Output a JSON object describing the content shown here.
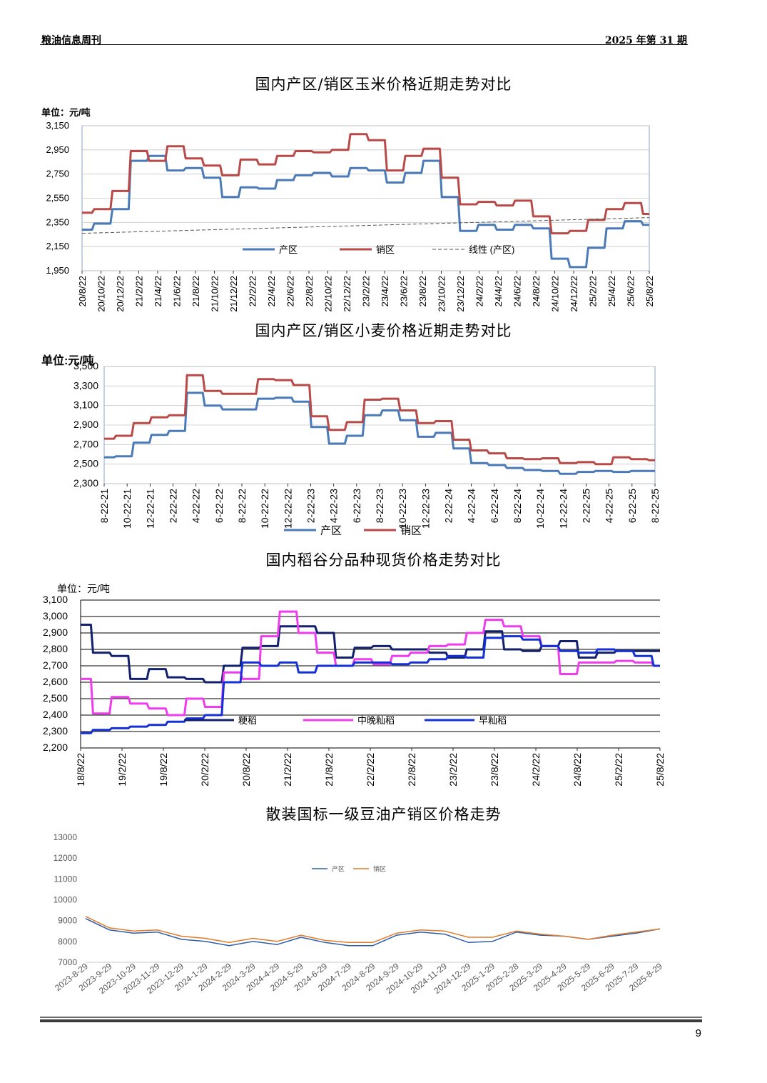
{
  "header": {
    "left": "粮油信息周刊",
    "right": "2025 年第 31 期"
  },
  "page_number": "9",
  "charts": [
    {
      "id": "corn",
      "title": "国内产区/销区玉米价格近期走势对比",
      "unit": "单位：元/吨",
      "ylim": [
        1950,
        3150
      ],
      "yticks": [
        "1,950",
        "2,150",
        "2,350",
        "2,550",
        "2,750",
        "2,950",
        "3,150"
      ],
      "yvals": [
        1950,
        2150,
        2350,
        2550,
        2750,
        2950,
        3150
      ],
      "xticks": [
        "20/8/22",
        "20/10/22",
        "20/12/22",
        "21/2/22",
        "21/4/22",
        "21/6/22",
        "21/8/22",
        "21/10/22",
        "21/12/22",
        "22/2/22",
        "22/4/22",
        "22/6/22",
        "22/8/22",
        "22/10/22",
        "22/12/22",
        "23/2/22",
        "23/4/22",
        "23/6/22",
        "23/8/22",
        "23/10/22",
        "23/12/22",
        "24/2/22",
        "24/4/22",
        "24/6/22",
        "24/8/22",
        "24/10/22",
        "24/12/22",
        "25/2/22",
        "25/4/22",
        "25/6/22",
        "25/8/22"
      ],
      "legend": [
        "产区",
        "销区",
        "线性 (产区)"
      ],
      "colors": [
        "#4a7ab8",
        "#b94a48",
        "#555555"
      ],
      "series": [
        {
          "name": "产区",
          "values": [
            2290,
            2340,
            2460,
            2860,
            2900,
            2780,
            2800,
            2720,
            2560,
            2640,
            2630,
            2700,
            2740,
            2760,
            2730,
            2800,
            2780,
            2680,
            2760,
            2860,
            2560,
            2280,
            2330,
            2290,
            2330,
            2300,
            2050,
            1980,
            2140,
            2300,
            2360,
            2330
          ]
        },
        {
          "name": "销区",
          "values": [
            2430,
            2460,
            2610,
            2940,
            2860,
            2980,
            2880,
            2820,
            2740,
            2870,
            2830,
            2900,
            2940,
            2930,
            2950,
            3080,
            3030,
            2780,
            2900,
            2960,
            2720,
            2500,
            2520,
            2490,
            2530,
            2400,
            2260,
            2280,
            2370,
            2460,
            2510,
            2420
          ]
        },
        {
          "name": "线性 (产区)",
          "values": [
            2260,
            2390
          ]
        }
      ]
    },
    {
      "id": "wheat",
      "title": "国内产区/销区小麦价格近期走势对比",
      "unit": "单位:元/吨",
      "ylim": [
        2300,
        3500
      ],
      "yticks": [
        "2,300",
        "2,500",
        "2,700",
        "2,900",
        "3,100",
        "3,300",
        "3,500"
      ],
      "yvals": [
        2300,
        2500,
        2700,
        2900,
        3100,
        3300,
        3500
      ],
      "xticks": [
        "8-22-21",
        "10-22-21",
        "12-22-21",
        "2-22-22",
        "4-22-22",
        "6-22-22",
        "8-22-22",
        "10-22-22",
        "12-22-22",
        "2-22-23",
        "4-22-23",
        "6-22-23",
        "8-22-23",
        "10-22-23",
        "12-22-23",
        "2-22-24",
        "4-22-24",
        "6-22-24",
        "8-22-24",
        "10-22-24",
        "12-22-24",
        "2-22-25",
        "4-22-25",
        "6-22-25",
        "8-22-25"
      ],
      "legend": [
        "产区",
        "销区"
      ],
      "colors": [
        "#4a7ab8",
        "#b94a48"
      ],
      "series": [
        {
          "name": "产区",
          "values": [
            2570,
            2580,
            2720,
            2800,
            2840,
            3230,
            3100,
            3060,
            3060,
            3170,
            3180,
            3140,
            2880,
            2710,
            2790,
            3000,
            3050,
            2950,
            2780,
            2820,
            2660,
            2510,
            2490,
            2460,
            2440,
            2430,
            2400,
            2420,
            2430,
            2420,
            2430,
            2430
          ]
        },
        {
          "name": "销区",
          "values": [
            2760,
            2790,
            2920,
            2980,
            3000,
            3410,
            3250,
            3220,
            3220,
            3370,
            3360,
            3310,
            2990,
            2850,
            2930,
            3160,
            3170,
            3050,
            2920,
            2940,
            2750,
            2640,
            2610,
            2560,
            2550,
            2560,
            2510,
            2520,
            2500,
            2570,
            2550,
            2540
          ]
        }
      ]
    },
    {
      "id": "rice",
      "title": "国内稻谷分品种现货价格走势对比",
      "unit": "单位：元/吨",
      "ylim": [
        2200,
        3100
      ],
      "yticks": [
        "2,200",
        "2,300",
        "2,400",
        "2,500",
        "2,600",
        "2,700",
        "2,800",
        "2,900",
        "3,000",
        "3,100"
      ],
      "yvals": [
        2200,
        2300,
        2400,
        2500,
        2600,
        2700,
        2800,
        2900,
        3000,
        3100
      ],
      "xticks": [
        "18/8/22",
        "19/2/22",
        "19/8/22",
        "20/2/22",
        "20/8/22",
        "21/2/22",
        "21/8/22",
        "22/2/22",
        "22/8/22",
        "23/2/22",
        "23/8/22",
        "24/2/22",
        "24/8/22",
        "25/2/22",
        "25/8/22"
      ],
      "legend": [
        "粳稻",
        "中晚籼稻",
        "早籼稻"
      ],
      "colors": [
        "#12206e",
        "#ee3cee",
        "#1530d6"
      ],
      "series": [
        {
          "name": "粳稻",
          "values": [
            2950,
            2780,
            2760,
            2620,
            2680,
            2630,
            2620,
            2600,
            2700,
            2810,
            2820,
            2940,
            2940,
            2900,
            2750,
            2810,
            2820,
            2800,
            2800,
            2780,
            2750,
            2800,
            2910,
            2800,
            2790,
            2820,
            2850,
            2750,
            2780,
            2790,
            2790,
            2790
          ]
        },
        {
          "name": "中晚籼稻",
          "values": [
            2620,
            2410,
            2510,
            2470,
            2440,
            2400,
            2500,
            2450,
            2660,
            2620,
            2880,
            3030,
            2900,
            2780,
            2700,
            2740,
            2710,
            2760,
            2780,
            2820,
            2830,
            2900,
            2980,
            2940,
            2880,
            2820,
            2650,
            2720,
            2720,
            2730,
            2720,
            2700
          ]
        },
        {
          "name": "早籼稻",
          "values": [
            2290,
            2310,
            2320,
            2330,
            2340,
            2360,
            2380,
            2400,
            2600,
            2720,
            2700,
            2720,
            2660,
            2700,
            2700,
            2720,
            2720,
            2710,
            2720,
            2740,
            2760,
            2750,
            2870,
            2880,
            2860,
            2820,
            2790,
            2780,
            2800,
            2790,
            2760,
            2700
          ]
        }
      ]
    },
    {
      "id": "soyoil",
      "title": "散装国标一级豆油产销区价格走势",
      "ylim": [
        7000,
        13000
      ],
      "yticks": [
        "7000",
        "8000",
        "9000",
        "10000",
        "11000",
        "12000",
        "13000"
      ],
      "yvals": [
        7000,
        8000,
        9000,
        10000,
        11000,
        12000,
        13000
      ],
      "xticks": [
        "2023-8-29",
        "2023-9-29",
        "2023-10-29",
        "2023-11-29",
        "2023-12-29",
        "2024-1-29",
        "2024-2-29",
        "2024-3-29",
        "2024-4-29",
        "2024-5-29",
        "2024-6-29",
        "2024-7-29",
        "2024-8-29",
        "2024-9-29",
        "2024-10-29",
        "2024-11-29",
        "2024-12-29",
        "2025-1-29",
        "2025-2-28",
        "2025-3-29",
        "2025-4-29",
        "2025-5-29",
        "2025-6-29",
        "2025-7-29",
        "2025-8-29"
      ],
      "legend": [
        "产区",
        "销区"
      ],
      "colors": [
        "#2f5ea8",
        "#e07b2a"
      ],
      "series": [
        {
          "name": "产区",
          "values": [
            9100,
            8550,
            8400,
            8450,
            8100,
            8000,
            7800,
            8000,
            7850,
            8200,
            7950,
            7800,
            7800,
            8300,
            8450,
            8350,
            7950,
            8000,
            8450,
            8300,
            8250,
            8100,
            8250,
            8400,
            8600
          ]
        },
        {
          "name": "销区",
          "values": [
            9200,
            8650,
            8500,
            8550,
            8250,
            8150,
            7950,
            8150,
            8000,
            8300,
            8050,
            7950,
            7950,
            8400,
            8550,
            8500,
            8200,
            8200,
            8500,
            8350,
            8250,
            8100,
            8300,
            8450,
            8600
          ]
        }
      ]
    }
  ]
}
